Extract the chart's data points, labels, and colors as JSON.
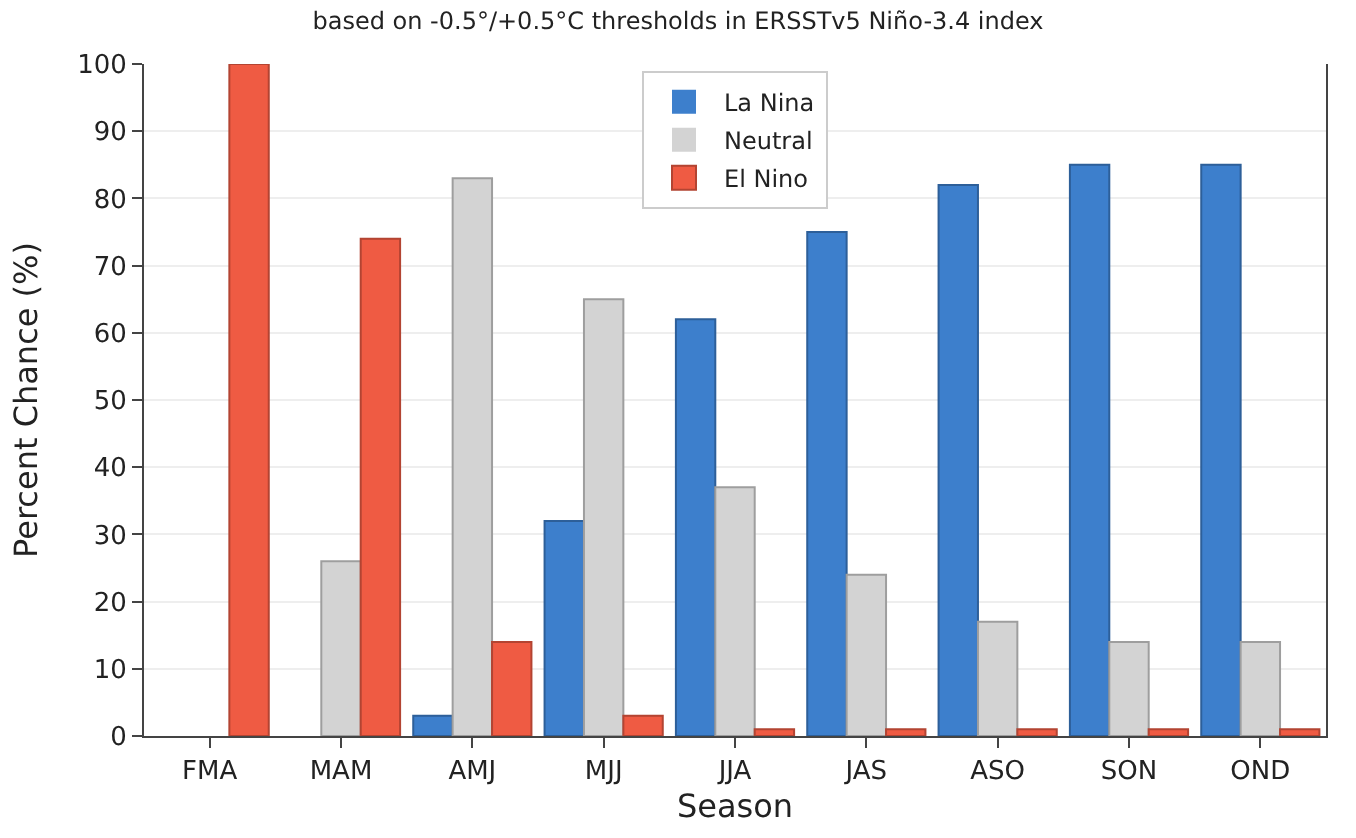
{
  "chart_data": {
    "type": "bar",
    "title": "based on -0.5°/+0.5°C thresholds in ERSSTv5 Niño-3.4 index",
    "xlabel": "Season",
    "ylabel": "Percent Chance (%)",
    "categories": [
      "FMA",
      "MAM",
      "AMJ",
      "MJJ",
      "JJA",
      "JAS",
      "ASO",
      "SON",
      "OND"
    ],
    "series": [
      {
        "name": "La Nina",
        "color": "#3d7fcc",
        "values": [
          0,
          0,
          3,
          32,
          62,
          75,
          82,
          85,
          85
        ]
      },
      {
        "name": "Neutral",
        "color": "#d3d3d3",
        "values": [
          0,
          26,
          83,
          65,
          37,
          24,
          17,
          14,
          14
        ]
      },
      {
        "name": "El Nino",
        "color": "#ef5b43",
        "values": [
          100,
          74,
          14,
          3,
          1,
          1,
          1,
          1,
          1
        ]
      }
    ],
    "ylim": [
      0,
      100
    ],
    "yticks": [
      0,
      10,
      20,
      30,
      40,
      50,
      60,
      70,
      80,
      90,
      100
    ],
    "grid": "y",
    "legend": "top"
  }
}
